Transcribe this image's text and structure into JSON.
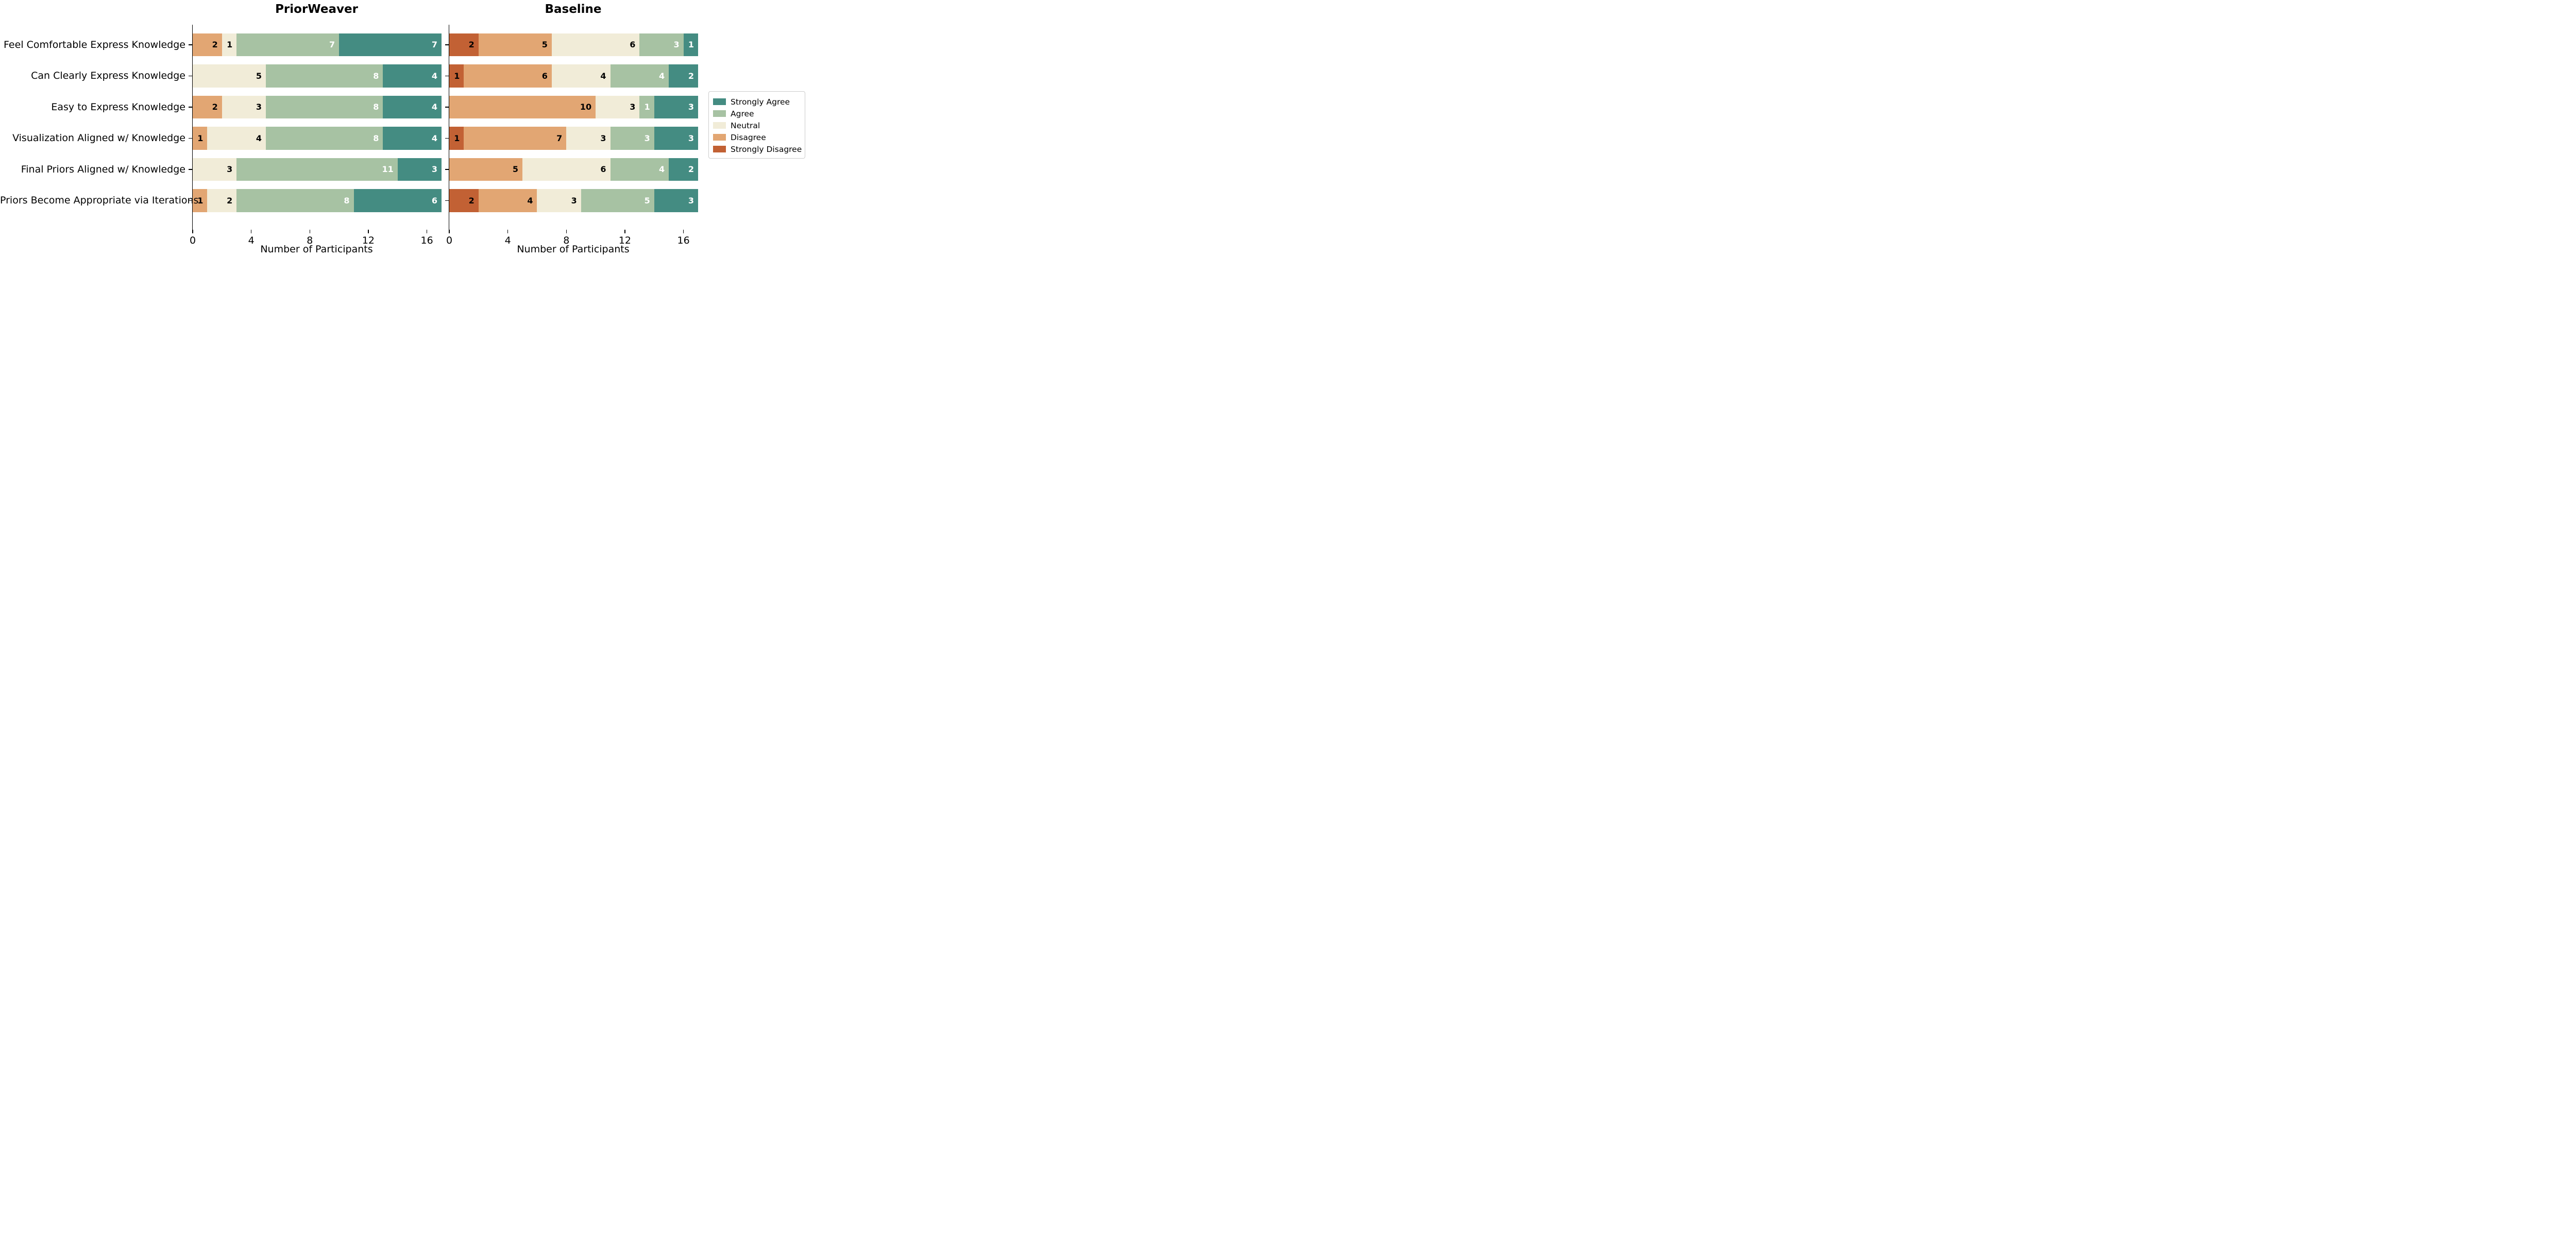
{
  "chart_data": {
    "type": "bar",
    "variant": "horizontal-stacked-likert",
    "title": "",
    "xlabel": "Number of Participants",
    "xticks": [
      0,
      4,
      8,
      12,
      16
    ],
    "xlim": [
      0,
      17
    ],
    "grid": false,
    "legend_position": "right",
    "categories": [
      "Feel Comfortable Express Knowledge",
      "Can Clearly Express Knowledge",
      "Easy to Express Knowledge",
      "Visualization Aligned w/ Knowledge",
      "Final Priors Aligned w/ Knowledge",
      "Priors Become Appropriate via Iterations"
    ],
    "legend_entries": [
      "Strongly Agree",
      "Agree",
      "Neutral",
      "Disagree",
      "Strongly Disagree"
    ],
    "stack_order": [
      "Strongly Disagree",
      "Disagree",
      "Neutral",
      "Agree",
      "Strongly Agree"
    ],
    "colors": {
      "Strongly Agree": "#448C82",
      "Agree": "#A7C2A3",
      "Neutral": "#F1ECD8",
      "Disagree": "#E2A673",
      "Strongly Disagree": "#C26134"
    },
    "value_label_colors": {
      "Strongly Agree": "#ffffff",
      "Agree": "#ffffff",
      "Neutral": "#000000",
      "Disagree": "#000000",
      "Strongly Disagree": "#000000"
    },
    "panels": [
      {
        "title": "PriorWeaver",
        "series": [
          {
            "name": "Strongly Disagree",
            "values": [
              0,
              0,
              0,
              0,
              0,
              0
            ]
          },
          {
            "name": "Disagree",
            "values": [
              2,
              0,
              2,
              1,
              0,
              1
            ]
          },
          {
            "name": "Neutral",
            "values": [
              1,
              5,
              3,
              4,
              3,
              2
            ]
          },
          {
            "name": "Agree",
            "values": [
              7,
              8,
              8,
              8,
              11,
              8
            ]
          },
          {
            "name": "Strongly Agree",
            "values": [
              7,
              4,
              4,
              4,
              3,
              6
            ]
          }
        ]
      },
      {
        "title": "Baseline",
        "series": [
          {
            "name": "Strongly Disagree",
            "values": [
              2,
              1,
              0,
              1,
              0,
              2
            ]
          },
          {
            "name": "Disagree",
            "values": [
              5,
              6,
              10,
              7,
              5,
              4
            ]
          },
          {
            "name": "Neutral",
            "values": [
              6,
              4,
              3,
              3,
              6,
              3
            ]
          },
          {
            "name": "Agree",
            "values": [
              3,
              4,
              1,
              3,
              4,
              5
            ]
          },
          {
            "name": "Strongly Agree",
            "values": [
              1,
              2,
              3,
              3,
              2,
              3
            ]
          }
        ]
      }
    ]
  }
}
